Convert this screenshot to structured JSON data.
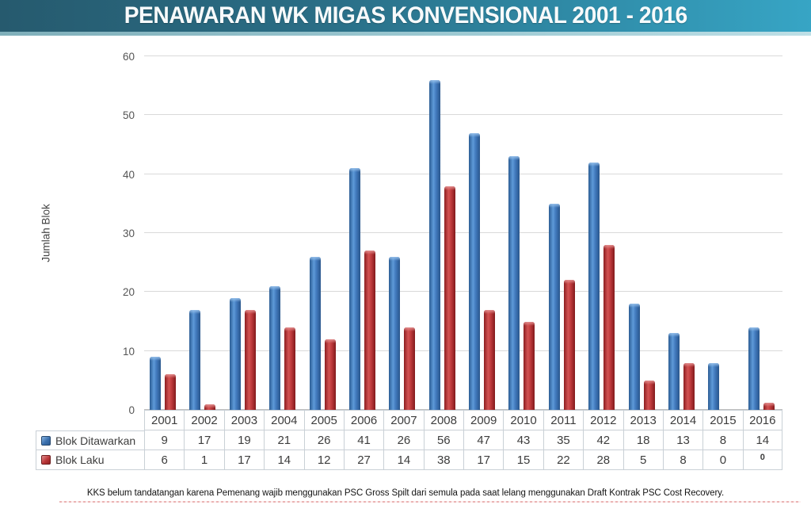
{
  "header": {
    "title": "PENAWARAN WK MIGAS KONVENSIONAL 2001 - 2016"
  },
  "chart_data": {
    "type": "bar",
    "title": "PENAWARAN WK MIGAS KONVENSIONAL 2001 - 2016",
    "xlabel": "",
    "ylabel": "Jumlah Blok",
    "ylim": [
      0,
      60
    ],
    "yticks": [
      0,
      10,
      20,
      30,
      40,
      50,
      60
    ],
    "grid": true,
    "legend_position": "table-left",
    "categories": [
      "2001",
      "2002",
      "2003",
      "2004",
      "2005",
      "2006",
      "2007",
      "2008",
      "2009",
      "2010",
      "2011",
      "2012",
      "2013",
      "2014",
      "2015",
      "2016"
    ],
    "series": [
      {
        "name": "Blok Ditawarkan",
        "color": "#3b74b6",
        "values": [
          9,
          17,
          19,
          21,
          26,
          41,
          26,
          56,
          47,
          43,
          35,
          42,
          18,
          13,
          8,
          14
        ],
        "visual_units": [
          9,
          17,
          19,
          21,
          26,
          41,
          26,
          56,
          47,
          43,
          35,
          42,
          18,
          13,
          8,
          14
        ]
      },
      {
        "name": "Blok Laku",
        "color": "#bb3638",
        "values": [
          6,
          1,
          17,
          14,
          12,
          27,
          14,
          38,
          17,
          15,
          22,
          28,
          5,
          8,
          0,
          0
        ],
        "visual_units": [
          6,
          1,
          17,
          14,
          12,
          27,
          14,
          38,
          17,
          15,
          22,
          28,
          5,
          8,
          0,
          1.2
        ]
      }
    ]
  },
  "table": {
    "raised_zero": {
      "series_index": 1,
      "category_index": 15
    }
  },
  "footnote": "KKS belum tandatangan karena Pemenang wajib menggunakan PSC Gross Spilt dari semula pada saat lelang menggunakan Draft Kontrak PSC Cost Recovery."
}
